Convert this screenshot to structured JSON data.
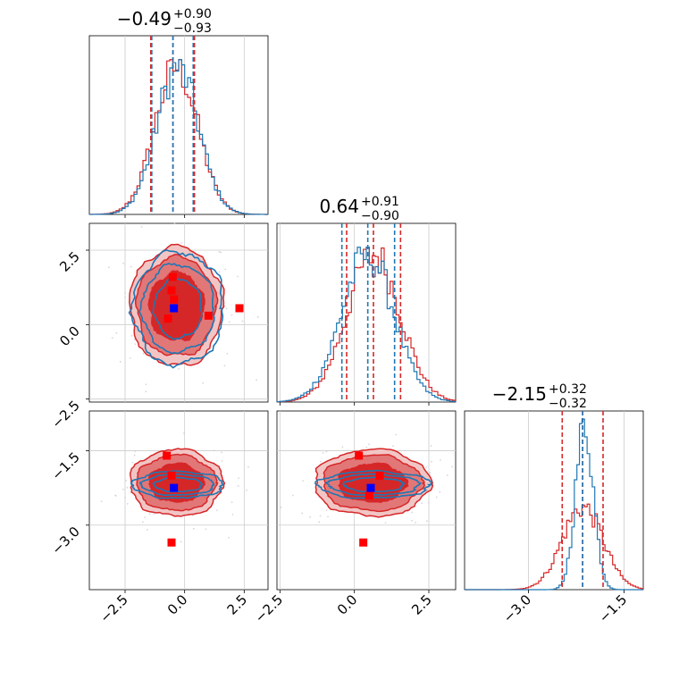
{
  "figure": {
    "type": "corner_plot",
    "parameters": [
      "p0",
      "p1",
      "p2"
    ]
  },
  "colors": {
    "series_red": "#d62728",
    "series_blue": "#1f77b4",
    "contour_fill_inner": "#d62728",
    "contour_fill_mid": "#e27778",
    "contour_fill_outer": "#f2c5c5",
    "marker_red": "#ff0000",
    "marker_blue": "#0000ff",
    "grid": "#cccccc",
    "axes": "#000000"
  },
  "chart_data": [
    {
      "type": "histogram",
      "panel": "marginal-0",
      "title_value": "-0.49",
      "title_plus": "+0.90",
      "title_minus": "-0.93",
      "title_text": "−0.49",
      "title_plus_text": "+0.90",
      "title_minus_text": "−0.93",
      "xlim": [
        -4.0,
        3.5
      ],
      "xticks": [
        -2.5,
        0.0,
        2.5
      ],
      "quantile_lines": {
        "red": [
          -1.42,
          -0.49,
          0.41
        ],
        "blue": [
          -1.38,
          -0.49,
          0.36
        ]
      },
      "series": [
        {
          "name": "red",
          "center": -0.35,
          "sigma": 0.9
        },
        {
          "name": "blue",
          "center": -0.3,
          "sigma": 0.88
        }
      ]
    },
    {
      "type": "histogram",
      "panel": "marginal-1",
      "title_value": "0.64",
      "title_plus": "+0.91",
      "title_minus": "-0.90",
      "title_text": "0.64",
      "title_plus_text": "+0.91",
      "title_minus_text": "−0.90",
      "xlim": [
        -2.6,
        3.4
      ],
      "xticks": [
        -2.5,
        0.0,
        2.5
      ],
      "quantile_lines": {
        "red": [
          -0.26,
          0.64,
          1.55
        ],
        "blue": [
          -0.42,
          0.45,
          1.35
        ]
      },
      "series": [
        {
          "name": "red",
          "center": 0.64,
          "sigma": 0.9
        },
        {
          "name": "blue",
          "center": 0.45,
          "sigma": 0.88
        }
      ]
    },
    {
      "type": "histogram",
      "panel": "marginal-2",
      "title_value": "-2.15",
      "title_plus": "+0.32",
      "title_minus": "-0.32",
      "title_text": "−2.15",
      "title_plus_text": "+0.32",
      "title_minus_text": "−0.32",
      "xlim": [
        -4.0,
        -1.2
      ],
      "xticks": [
        -3.0,
        -1.5
      ],
      "tick_labels": [
        "−3.0",
        "−1.5"
      ],
      "quantile_lines": {
        "red": [
          -2.47,
          -2.15,
          -1.83
        ],
        "blue": [
          -2.15
        ]
      },
      "series": [
        {
          "name": "red",
          "center": -2.15,
          "sigma": 0.32
        },
        {
          "name": "blue",
          "center": -2.12,
          "sigma": 0.14
        }
      ]
    },
    {
      "type": "contour",
      "panel": "pair-1-0",
      "x_param": "p0",
      "y_param": "p1",
      "xlim": [
        -4.0,
        3.5
      ],
      "ylim": [
        -2.6,
        3.4
      ],
      "yticks": [
        -2.5,
        0.0,
        2.5
      ],
      "red_markers": [
        [
          -0.5,
          1.6
        ],
        [
          -0.55,
          1.15
        ],
        [
          -0.45,
          0.85
        ],
        [
          -0.7,
          0.2
        ],
        [
          1.0,
          0.3
        ],
        [
          2.3,
          0.55
        ]
      ],
      "blue_markers": [
        [
          -0.45,
          0.55
        ]
      ]
    },
    {
      "type": "contour",
      "panel": "pair-2-0",
      "x_param": "p0",
      "y_param": "p2",
      "xlim": [
        -4.0,
        3.5
      ],
      "ylim": [
        -4.3,
        -0.7
      ],
      "yticks": [
        -3.0,
        -1.5
      ],
      "tick_labels": [
        "−3.0",
        "−1.5"
      ],
      "red_markers": [
        [
          -0.75,
          -1.6
        ],
        [
          -0.55,
          -2.0
        ],
        [
          -0.55,
          -3.35
        ]
      ],
      "blue_markers": [
        [
          -0.45,
          -2.25
        ]
      ]
    },
    {
      "type": "contour",
      "panel": "pair-2-1",
      "x_param": "p1",
      "y_param": "p2",
      "xlim": [
        -2.6,
        3.4
      ],
      "ylim": [
        -4.3,
        -0.7
      ],
      "red_markers": [
        [
          0.15,
          -1.6
        ],
        [
          0.85,
          -2.0
        ],
        [
          0.5,
          -2.4
        ],
        [
          0.3,
          -3.35
        ]
      ],
      "blue_markers": [
        [
          0.55,
          -2.25
        ]
      ]
    }
  ],
  "tick_text": {
    "m2_5": "−2.5",
    "z0": "0.0",
    "p2_5": "2.5",
    "m3_0": "−3.0",
    "m1_5": "−1.5"
  }
}
